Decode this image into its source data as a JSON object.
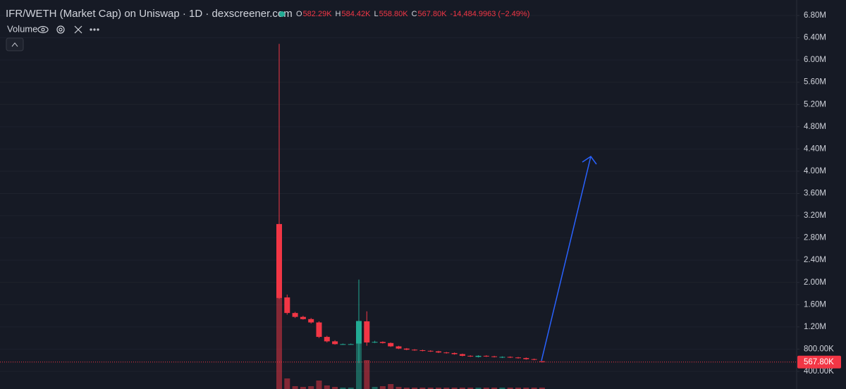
{
  "chart_data": {
    "type": "candlestick",
    "title": "IFR/WETH (Market Cap) on Uniswap · 1D · dexscreener.com",
    "ohlc_legend": {
      "letters": [
        "O",
        "H",
        "L",
        "C"
      ],
      "values": [
        "582.29K",
        "584.42K",
        "558.80K",
        "567.80K"
      ],
      "change": "-14,484.9963 (−2.49%)"
    },
    "volume_label": "Volume",
    "up_color": "#22ab94",
    "down_color": "#f23645",
    "open": [
      3050000,
      1730000,
      1450000,
      1380000,
      1340000,
      1280000,
      1020000,
      940000,
      890000,
      890000,
      900000,
      1300000,
      920000,
      930000,
      910000,
      850000,
      810000,
      790000,
      780000,
      770000,
      760000,
      740000,
      730000,
      710000,
      680000,
      660000,
      680000,
      670000,
      650000,
      660000,
      650000,
      640000,
      620000,
      582290
    ],
    "high": [
      6290000,
      1780000,
      1470000,
      1400000,
      1360000,
      1300000,
      1040000,
      960000,
      900000,
      900000,
      2050000,
      1480000,
      950000,
      940000,
      920000,
      860000,
      820000,
      800000,
      790000,
      780000,
      770000,
      750000,
      740000,
      720000,
      690000,
      690000,
      690000,
      680000,
      670000,
      670000,
      660000,
      650000,
      630000,
      584420
    ],
    "low": [
      1700000,
      1420000,
      1360000,
      1330000,
      1260000,
      1000000,
      920000,
      880000,
      880000,
      880000,
      550000,
      860000,
      910000,
      900000,
      840000,
      800000,
      780000,
      770000,
      760000,
      750000,
      730000,
      720000,
      700000,
      670000,
      660000,
      650000,
      660000,
      650000,
      640000,
      640000,
      630000,
      610000,
      600000,
      558800
    ],
    "close": [
      1720000,
      1450000,
      1380000,
      1340000,
      1280000,
      1020000,
      940000,
      890000,
      890000,
      890000,
      1300000,
      920000,
      930000,
      910000,
      850000,
      810000,
      790000,
      780000,
      770000,
      760000,
      740000,
      730000,
      710000,
      680000,
      670000,
      680000,
      670000,
      660000,
      660000,
      650000,
      640000,
      620000,
      610000,
      567800
    ],
    "volume": [
      130,
      15,
      4,
      3,
      4,
      12,
      5,
      3,
      2,
      2,
      97,
      41,
      3,
      4,
      7,
      3,
      2,
      2,
      2,
      2,
      2,
      2,
      2,
      2,
      2,
      2,
      2,
      2,
      2,
      2,
      2,
      2,
      2,
      2
    ],
    "last_price_label": "567.80K",
    "ylim": [
      83000,
      7079000
    ],
    "yticks": [
      {
        "value": 400000,
        "label": "400.00K"
      },
      {
        "value": 800000,
        "label": "800.00K"
      },
      {
        "value": 1200000,
        "label": "1.20M"
      },
      {
        "value": 1600000,
        "label": "1.60M"
      },
      {
        "value": 2000000,
        "label": "2.00M"
      },
      {
        "value": 2400000,
        "label": "2.40M"
      },
      {
        "value": 2800000,
        "label": "2.80M"
      },
      {
        "value": 3200000,
        "label": "3.20M"
      },
      {
        "value": 3600000,
        "label": "3.60M"
      },
      {
        "value": 4000000,
        "label": "4.00M"
      },
      {
        "value": 4400000,
        "label": "4.40M"
      },
      {
        "value": 4800000,
        "label": "4.80M"
      },
      {
        "value": 5200000,
        "label": "5.20M"
      },
      {
        "value": 5600000,
        "label": "5.60M"
      },
      {
        "value": 6000000,
        "label": "6.00M"
      },
      {
        "value": 6400000,
        "label": "6.40M"
      },
      {
        "value": 6800000,
        "label": "6.80M"
      }
    ],
    "grid": true
  }
}
